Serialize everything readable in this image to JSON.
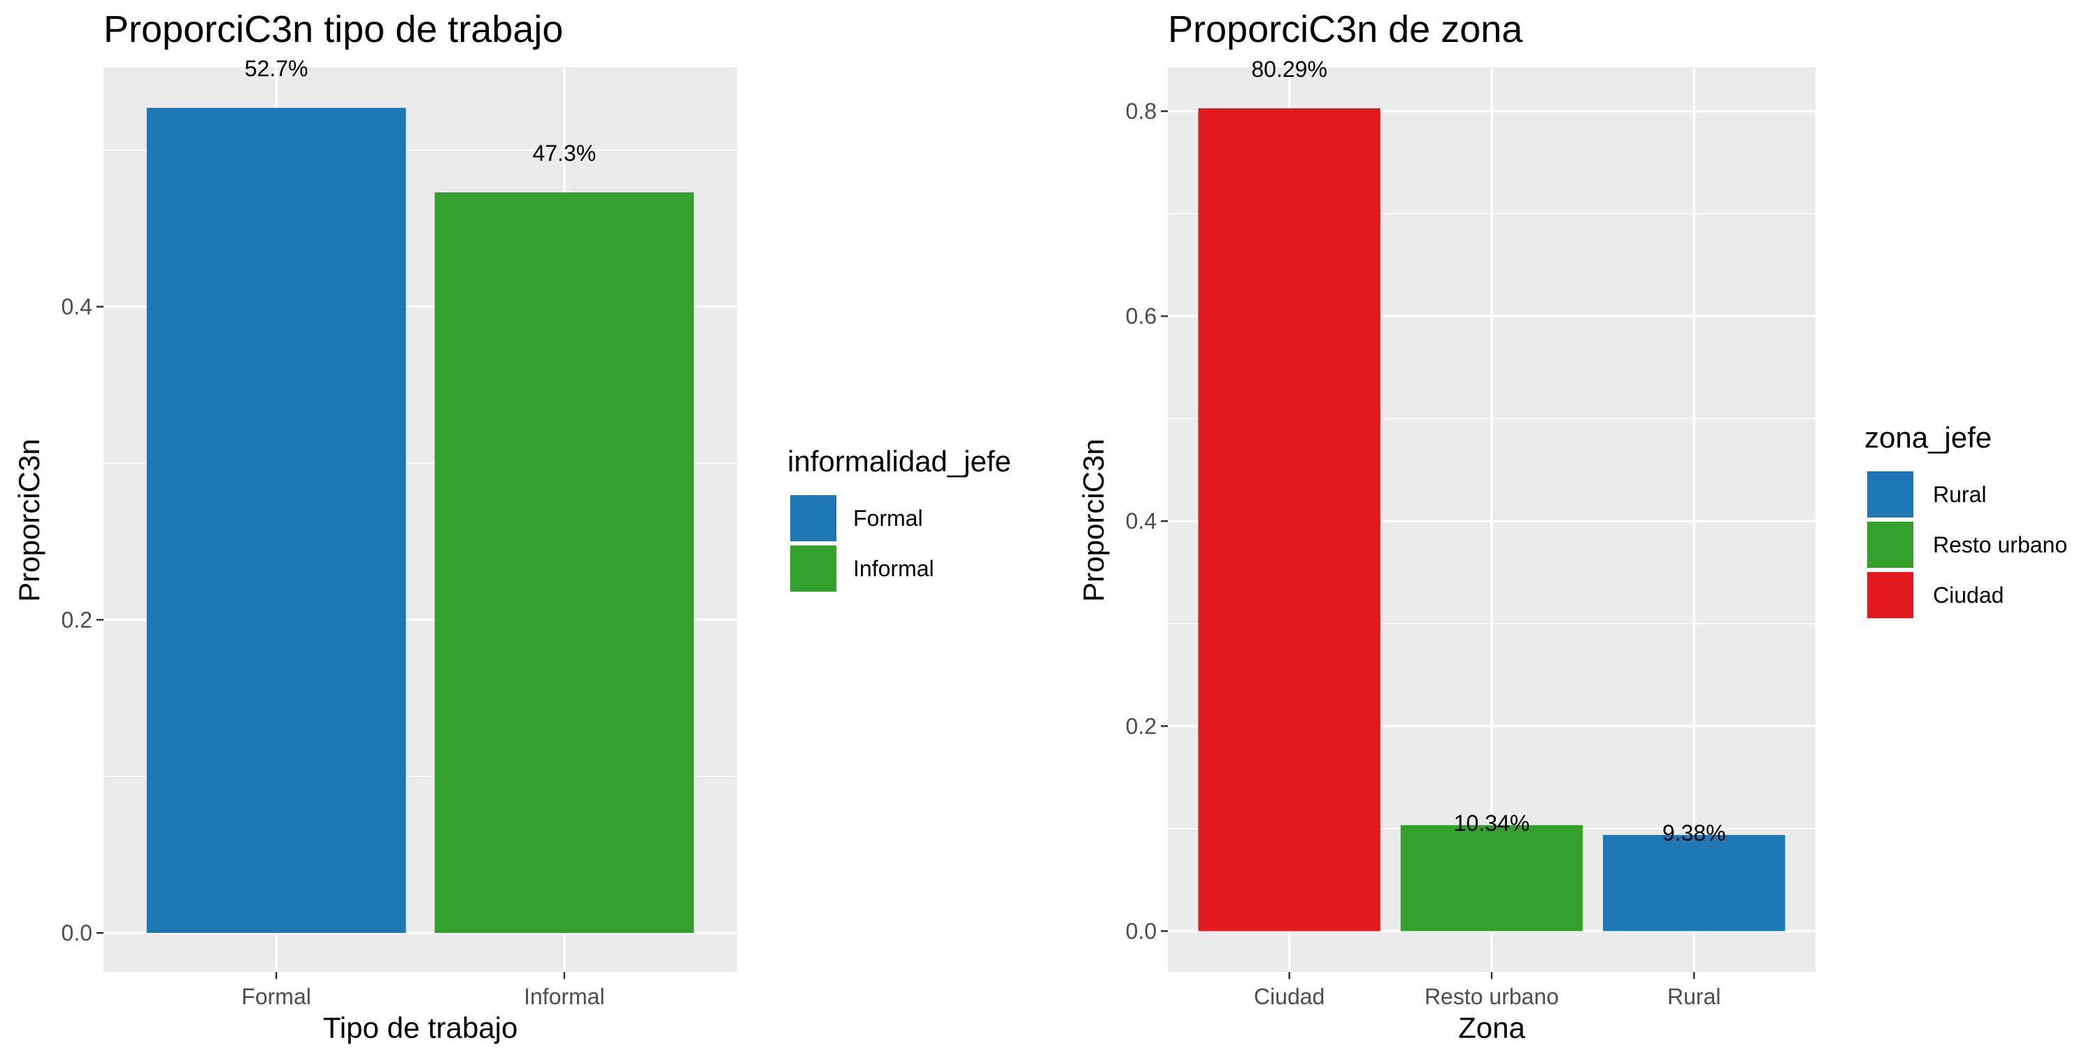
{
  "chart_data": [
    {
      "type": "bar",
      "title": "ProporciC3n tipo de trabajo",
      "xlabel": "Tipo de trabajo",
      "ylabel": "ProporciC3n",
      "categories": [
        "Formal",
        "Informal"
      ],
      "values": [
        0.527,
        0.473
      ],
      "labels": [
        "52.7%",
        "47.3%"
      ],
      "colors": [
        "#1F78B4",
        "#33A02C"
      ],
      "ylim": [
        -0.025,
        0.553
      ],
      "yticks": [
        0.0,
        0.2,
        0.4
      ],
      "ytick_labels": [
        "0.0",
        "0.2",
        "0.4"
      ],
      "grid": true,
      "legend": {
        "title": "informalidad_jefe",
        "position": "right",
        "items": [
          {
            "label": "Formal",
            "color": "#1F78B4"
          },
          {
            "label": "Informal",
            "color": "#33A02C"
          }
        ]
      }
    },
    {
      "type": "bar",
      "title": "ProporciC3n de zona",
      "xlabel": "Zona",
      "ylabel": "ProporciC3n",
      "categories": [
        "Ciudad",
        "Resto urbano",
        "Rural"
      ],
      "values": [
        0.8029,
        0.1034,
        0.0938
      ],
      "labels": [
        "80.29%",
        "10.34%",
        "9.38%"
      ],
      "colors": [
        "#E31A1C",
        "#33A02C",
        "#1F78B4"
      ],
      "ylim": [
        -0.04,
        0.843
      ],
      "yticks": [
        0.0,
        0.2,
        0.4,
        0.6,
        0.8
      ],
      "ytick_labels": [
        "0.0",
        "0.2",
        "0.4",
        "0.6",
        "0.8"
      ],
      "grid": true,
      "legend": {
        "title": "zona_jefe",
        "position": "right",
        "items": [
          {
            "label": "Rural",
            "color": "#1F78B4"
          },
          {
            "label": "Resto urbano",
            "color": "#33A02C"
          },
          {
            "label": "Ciudad",
            "color": "#E31A1C"
          }
        ]
      }
    }
  ]
}
